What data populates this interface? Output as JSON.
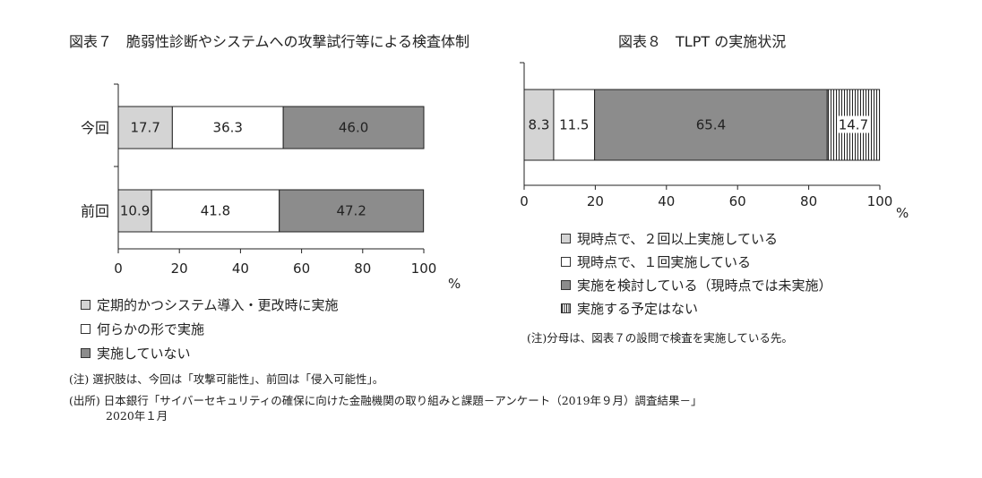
{
  "charts": {
    "left": {
      "title": "図表７　脆弱性診断やシステムへの攻撃試行等による検査体制",
      "legend": [
        {
          "label": "定期的かつシステム導入・更改時に実施",
          "color": "#d4d4d4",
          "pattern": "solid"
        },
        {
          "label": "何らかの形で実施",
          "color": "#ffffff",
          "pattern": "solid"
        },
        {
          "label": "実施していない",
          "color": "#8c8c8c",
          "pattern": "solid"
        }
      ],
      "note": "(注) 選択肢は、今回は「攻撃可能性」、前回は「侵入可能性」。"
    },
    "right": {
      "title": "図表８　TLPT の実施状況",
      "legend": [
        {
          "label": "現時点で、２回以上実施している",
          "color": "#d4d4d4",
          "pattern": "solid"
        },
        {
          "label": "現時点で、１回実施している",
          "color": "#ffffff",
          "pattern": "solid"
        },
        {
          "label": "実施を検討している（現時点では未実施）",
          "color": "#8c8c8c",
          "pattern": "solid"
        },
        {
          "label": "実施する予定はない",
          "color": "#ffffff",
          "pattern": "vstripe"
        }
      ],
      "note": "(注)分母は、図表７の設問で検査を実施している先。"
    }
  },
  "source": {
    "line1": "(出所) 日本銀行「サイバーセキュリティの確保に向けた金融機関の取り組みと課題－アンケート（2019年９月）調査結果－」",
    "line2": "2020年１月"
  },
  "chart_data": [
    {
      "type": "bar",
      "orientation": "horizontal",
      "stacked": true,
      "title": "図表７　脆弱性診断やシステムへの攻撃試行等による検査体制",
      "categories": [
        "今回",
        "前回"
      ],
      "series": [
        {
          "name": "定期的かつシステム導入・更改時に実施",
          "values": [
            17.7,
            10.9
          ],
          "color": "#d4d4d4"
        },
        {
          "name": "何らかの形で実施",
          "values": [
            36.3,
            41.8
          ],
          "color": "#ffffff"
        },
        {
          "name": "実施していない",
          "values": [
            46.0,
            47.2
          ],
          "color": "#8c8c8c"
        }
      ],
      "value_labels": [
        [
          "17.7",
          "36.3",
          "46.0"
        ],
        [
          "10.9",
          "41.8",
          "47.2"
        ]
      ],
      "xlim": [
        0,
        100
      ],
      "xticks": [
        "0",
        "20",
        "40",
        "60",
        "80",
        "100"
      ],
      "xunit": "%"
    },
    {
      "type": "bar",
      "orientation": "horizontal",
      "stacked": true,
      "title": "図表８　TLPT の実施状況",
      "categories": [
        ""
      ],
      "series": [
        {
          "name": "現時点で、２回以上実施している",
          "values": [
            8.3
          ],
          "color": "#d4d4d4"
        },
        {
          "name": "現時点で、１回実施している",
          "values": [
            11.5
          ],
          "color": "#ffffff"
        },
        {
          "name": "実施を検討している（現時点では未実施）",
          "values": [
            65.4
          ],
          "color": "#8c8c8c"
        },
        {
          "name": "実施する予定はない",
          "values": [
            14.7
          ],
          "color": "#ffffff",
          "pattern": "vstripe"
        }
      ],
      "value_labels": [
        [
          "8.3",
          "11.5",
          "65.4",
          "14.7"
        ]
      ],
      "xlim": [
        0,
        100
      ],
      "xticks": [
        "0",
        "20",
        "40",
        "60",
        "80",
        "100"
      ],
      "xunit": "%"
    }
  ]
}
